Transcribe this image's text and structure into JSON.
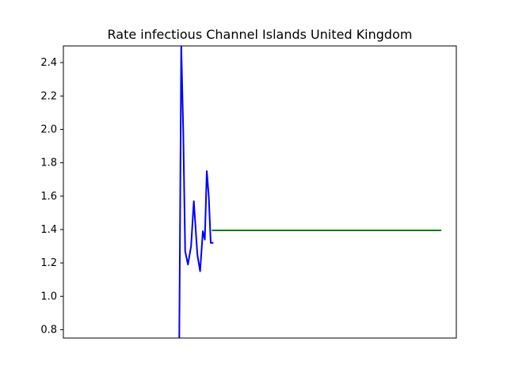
{
  "chart_data": {
    "type": "line",
    "title": "Rate infectious Channel Islands United Kingdom",
    "xlabel": "",
    "ylabel": "",
    "ylim": [
      0.75,
      2.5
    ],
    "y_ticks": [
      "0.8",
      "1.0",
      "1.2",
      "1.4",
      "1.6",
      "1.8",
      "2.0",
      "2.2",
      "2.4"
    ],
    "x_tick_labels_visible": false,
    "grid": false,
    "xlim": [
      0,
      100
    ],
    "series": [
      {
        "color": "#0000ff",
        "x": [
          29.5,
          30.0,
          30.5,
          31.0,
          31.7,
          32.5,
          33.2,
          34.1,
          34.8,
          35.5,
          36.0,
          36.5,
          37.0,
          37.5,
          38.0
        ],
        "y": [
          0.75,
          2.5,
          2.0,
          1.27,
          1.19,
          1.3,
          1.57,
          1.25,
          1.15,
          1.39,
          1.34,
          1.75,
          1.6,
          1.32,
          1.32
        ]
      },
      {
        "color": "#008000",
        "x": [
          38.0,
          96.0
        ],
        "y": [
          1.395,
          1.395
        ]
      }
    ]
  }
}
